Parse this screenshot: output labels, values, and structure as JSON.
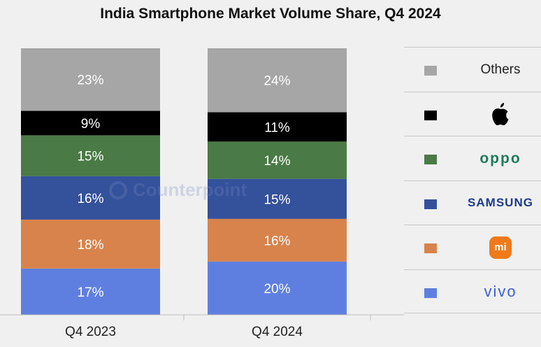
{
  "title": "India Smartphone Market Volume Share, Q4 2024",
  "watermark": "Counterpoint",
  "chart_data": {
    "type": "bar",
    "stacked": true,
    "categories": [
      "Q4 2023",
      "Q4 2024"
    ],
    "series": [
      {
        "name": "vivo",
        "values": [
          17,
          20
        ],
        "color": "#5f7fe0"
      },
      {
        "name": "Xiaomi",
        "values": [
          18,
          16
        ],
        "color": "#d8834c"
      },
      {
        "name": "SAMSUNG",
        "values": [
          16,
          15
        ],
        "color": "#34519b"
      },
      {
        "name": "oppo",
        "values": [
          15,
          14
        ],
        "color": "#4a7a45"
      },
      {
        "name": "Apple",
        "values": [
          9,
          11
        ],
        "color": "#000000"
      },
      {
        "name": "Others",
        "values": [
          23,
          24
        ],
        "color": "#a6a6a6"
      }
    ],
    "ylim": [
      0,
      100
    ],
    "legend_position": "right"
  },
  "legend": [
    {
      "name": "Others",
      "label": "Others",
      "icon": "text",
      "color": "#a6a6a6"
    },
    {
      "name": "Apple",
      "label": "",
      "icon": "apple-logo-icon",
      "color": "#000000"
    },
    {
      "name": "oppo",
      "label": "oppo",
      "icon": "oppo-logo",
      "color": "#4a7a45"
    },
    {
      "name": "SAMSUNG",
      "label": "SAMSUNG",
      "icon": "samsung-logo",
      "color": "#34519b"
    },
    {
      "name": "Xiaomi",
      "label": "mi",
      "icon": "mi-logo-icon",
      "color": "#d8834c"
    },
    {
      "name": "vivo",
      "label": "vivo",
      "icon": "vivo-logo",
      "color": "#5f7fe0"
    }
  ]
}
